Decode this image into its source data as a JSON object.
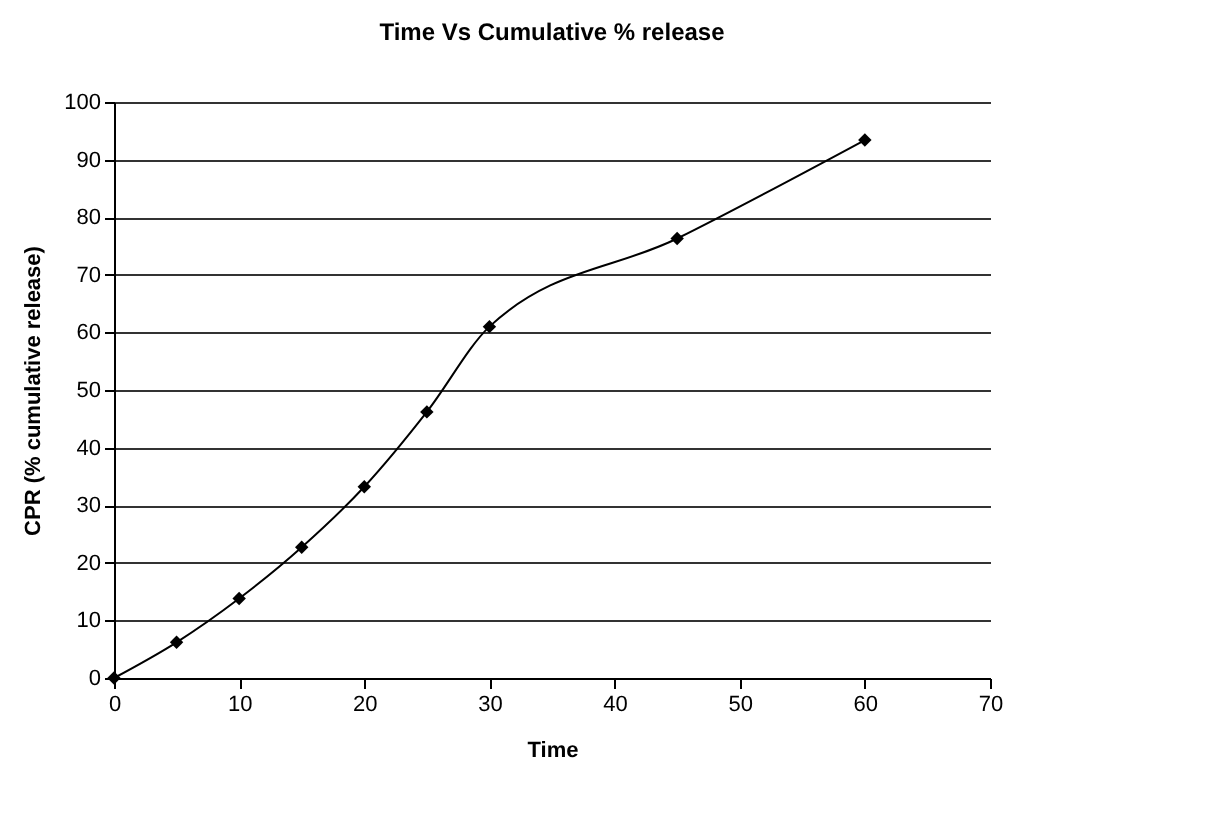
{
  "chart_data": {
    "type": "line",
    "title": "Time Vs Cumulative % release",
    "xlabel": "Time",
    "ylabel": "CPR (% cumulative release)",
    "x": [
      0,
      5,
      10,
      15,
      20,
      25,
      30,
      45,
      60
    ],
    "series": [
      {
        "color": "#000000",
        "values": [
          0,
          6.2,
          13.8,
          22.7,
          33.2,
          46.2,
          61.0,
          76.3,
          93.4
        ]
      }
    ],
    "xlim": [
      0,
      70
    ],
    "xticks": [
      0,
      10,
      20,
      30,
      40,
      50,
      60,
      70
    ],
    "ylim": [
      0,
      100
    ],
    "yticks": [
      0,
      10,
      20,
      30,
      40,
      50,
      60,
      70,
      80,
      90,
      100
    ],
    "grid": "y",
    "marker": "diamond",
    "line_style": "solid"
  }
}
